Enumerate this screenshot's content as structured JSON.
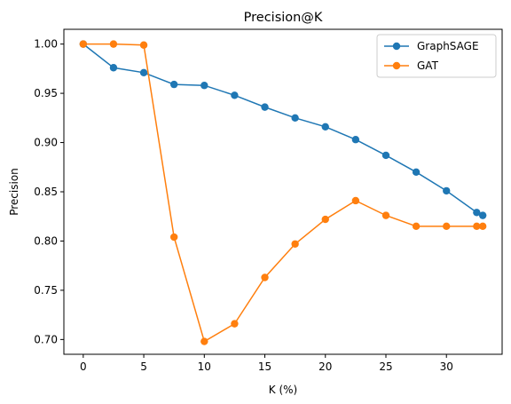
{
  "chart_data": {
    "type": "line",
    "title": "Precision@K",
    "xlabel": "K (%)",
    "ylabel": "Precision",
    "xlim": [
      -1.6,
      34.6
    ],
    "ylim": [
      0.685,
      1.015
    ],
    "xticks": [
      0,
      5,
      10,
      15,
      20,
      25,
      30
    ],
    "yticks": [
      0.7,
      0.75,
      0.8,
      0.85,
      0.9,
      0.95,
      1.0
    ],
    "xtick_labels": [
      "0",
      "5",
      "10",
      "15",
      "20",
      "25",
      "30"
    ],
    "ytick_labels": [
      "0.70",
      "0.75",
      "0.80",
      "0.85",
      "0.90",
      "0.95",
      "1.00"
    ],
    "grid": false,
    "legend": "top-right",
    "series": [
      {
        "name": "GraphSAGE",
        "color": "#1f77b4",
        "marker": "circle",
        "x": [
          0,
          2.5,
          5,
          7.5,
          10,
          12.5,
          15,
          17.5,
          20,
          22.5,
          25,
          27.5,
          30,
          32.5,
          33
        ],
        "y": [
          1.0,
          0.976,
          0.971,
          0.959,
          0.958,
          0.948,
          0.936,
          0.925,
          0.916,
          0.903,
          0.887,
          0.87,
          0.851,
          0.829,
          0.826
        ]
      },
      {
        "name": "GAT",
        "color": "#ff7f0e",
        "marker": "circle",
        "x": [
          0,
          2.5,
          5,
          7.5,
          10,
          12.5,
          15,
          17.5,
          20,
          22.5,
          25,
          27.5,
          30,
          32.5,
          33
        ],
        "y": [
          1.0,
          1.0,
          0.999,
          0.804,
          0.698,
          0.716,
          0.763,
          0.797,
          0.822,
          0.841,
          0.826,
          0.815,
          0.815,
          0.815,
          0.815
        ]
      }
    ]
  }
}
